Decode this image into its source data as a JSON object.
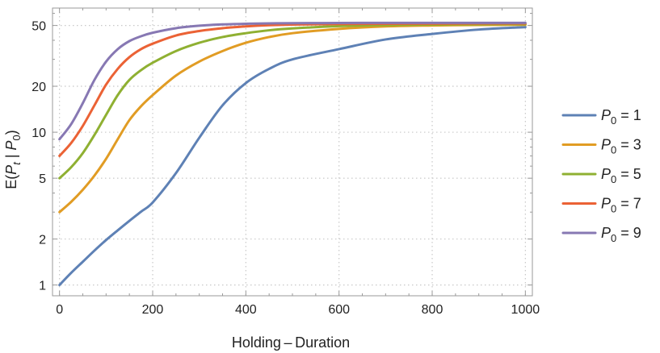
{
  "chart_data": {
    "type": "line",
    "title": "",
    "xlabel": "Holding – Duration",
    "ylabel": {
      "prefix": "E(",
      "var1": "P",
      "sub1": "t",
      "mid": " | ",
      "var2": "P",
      "sub2": "0",
      "suffix": ")"
    },
    "xlim": [
      -15,
      1015
    ],
    "ylim": [
      0.85,
      65
    ],
    "yscale": "log",
    "grid": true,
    "legend_position": "right",
    "x_ticks": [
      0,
      200,
      400,
      600,
      800,
      1000
    ],
    "x_tick_labels": [
      "0",
      "200",
      "400",
      "600",
      "800",
      "1000"
    ],
    "y_ticks": [
      1,
      2,
      5,
      10,
      20,
      50
    ],
    "y_tick_labels": [
      "1",
      "2",
      "5",
      "10",
      "20",
      "50"
    ],
    "x": [
      0,
      25,
      50,
      75,
      100,
      125,
      150,
      175,
      200,
      250,
      300,
      350,
      400,
      450,
      500,
      600,
      700,
      800,
      900,
      1000
    ],
    "series": [
      {
        "name": "P0 = 1",
        "var": "P",
        "sub": "0",
        "rest": " = 1",
        "color": "#5e81b5",
        "values": [
          1.0,
          1.2,
          1.42,
          1.68,
          1.97,
          2.28,
          2.63,
          3.02,
          3.47,
          5.4,
          9.2,
          15.0,
          21.0,
          26.0,
          30.0,
          35.0,
          40.5,
          44.0,
          47.0,
          48.8
        ]
      },
      {
        "name": "P0 = 3",
        "var": "P",
        "sub": "0",
        "rest": " = 3",
        "color": "#e19c24",
        "values": [
          3.0,
          3.5,
          4.2,
          5.2,
          6.7,
          9.0,
          12.0,
          14.8,
          17.5,
          23.5,
          29.0,
          34.0,
          38.5,
          42.0,
          44.5,
          47.5,
          49.3,
          50.0,
          50.4,
          50.5
        ]
      },
      {
        "name": "P0 = 5",
        "var": "P",
        "sub": "0",
        "rest": " = 5",
        "color": "#8fb032",
        "values": [
          5.0,
          5.9,
          7.3,
          9.6,
          13.0,
          17.5,
          22.0,
          25.5,
          28.5,
          34.0,
          38.5,
          42.0,
          44.5,
          46.5,
          47.8,
          49.5,
          50.3,
          50.7,
          50.9,
          51.0
        ]
      },
      {
        "name": "P0 = 7",
        "var": "P",
        "sub": "0",
        "rest": " = 7",
        "color": "#eb6235",
        "values": [
          7.0,
          8.5,
          11.0,
          15.0,
          20.5,
          26.0,
          31.0,
          35.0,
          38.0,
          43.0,
          46.0,
          48.0,
          49.3,
          50.2,
          50.7,
          51.1,
          51.3,
          51.4,
          51.5,
          51.5
        ]
      },
      {
        "name": "P0 = 9",
        "var": "P",
        "sub": "0",
        "rest": " = 9",
        "color": "#8778b3",
        "values": [
          9.0,
          11.3,
          15.5,
          22.0,
          29.0,
          35.0,
          39.5,
          42.5,
          44.8,
          48.0,
          49.8,
          50.8,
          51.3,
          51.6,
          51.8,
          51.9,
          52.0,
          52.0,
          52.0,
          52.0
        ]
      }
    ]
  }
}
